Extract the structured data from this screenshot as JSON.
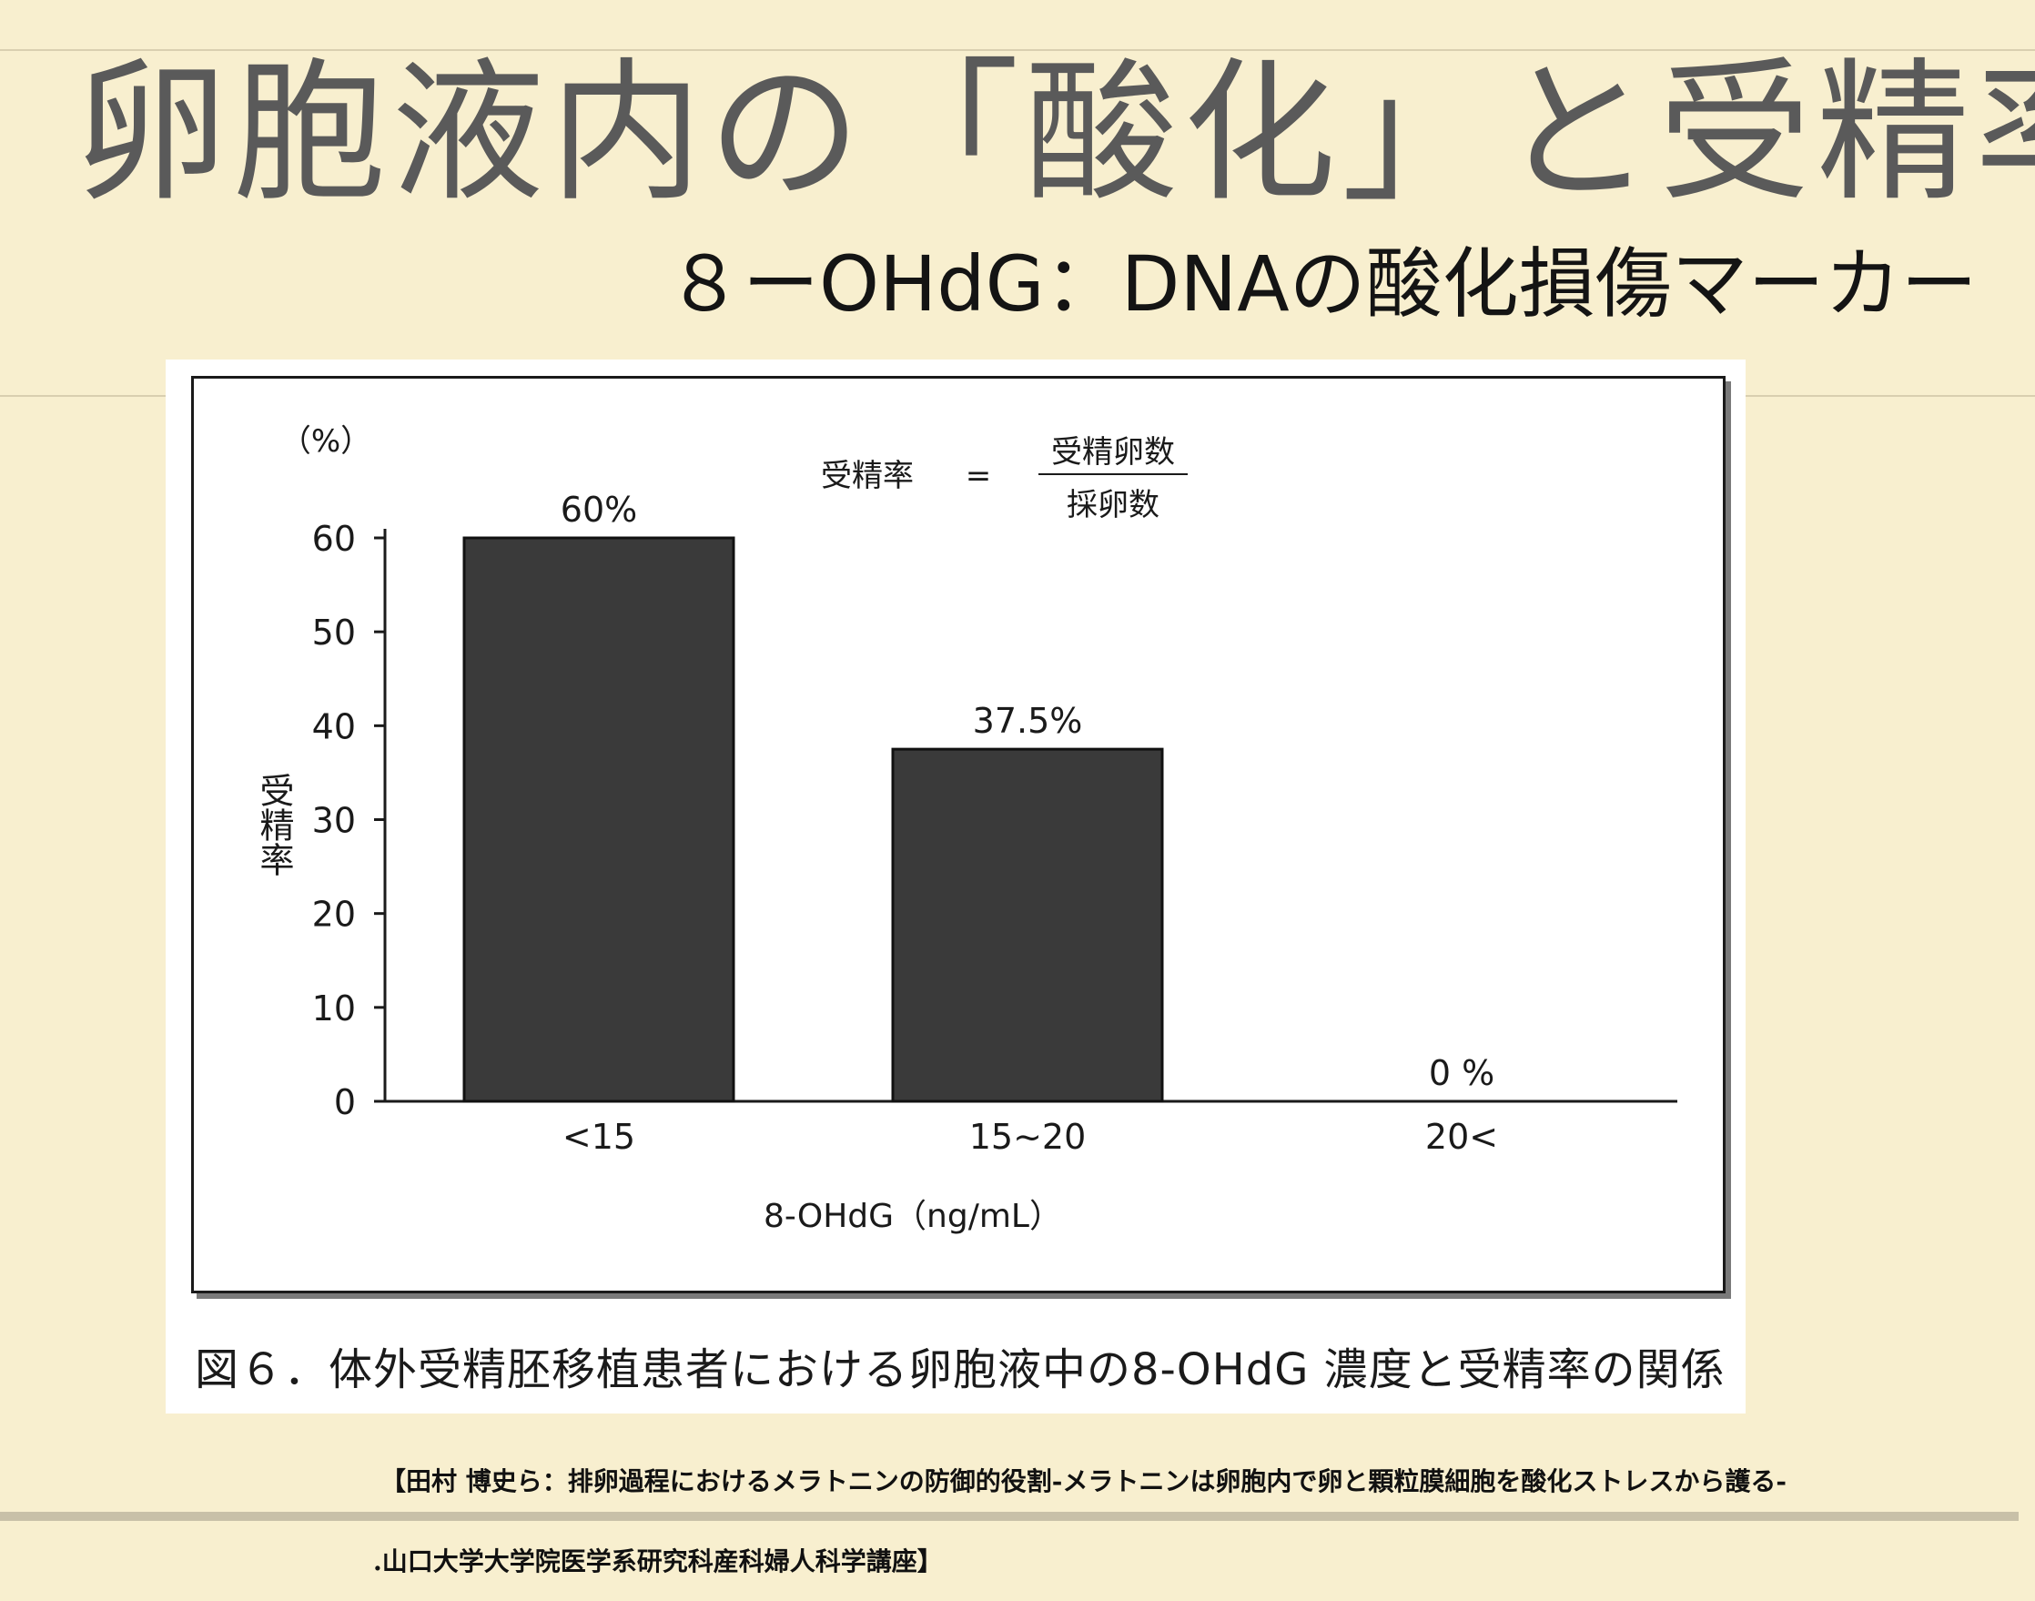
{
  "slide": {
    "title": "卵胞液内の「酸化」と受精率",
    "subtitle": "８ーOHdG：DNAの酸化損傷マーカー"
  },
  "figure": {
    "caption": "図６．体外受精胚移植患者における卵胞液中の8-OHdG 濃度と受精率の関係",
    "formula": {
      "lhs": "受精率",
      "equals": "=",
      "numerator": "受精卵数",
      "denominator": "採卵数"
    }
  },
  "citation": {
    "line1": "【田村 博史ら：排卵過程におけるメラトニンの防御的役割-メラトニンは卵胞内で卵と顆粒膜細胞を酸化ストレスから護る-",
    "line2": ".山口大学大学院医学系研究科産科婦人科学講座】"
  },
  "colors": {
    "bar": "#3a3a3a",
    "slide_background": "#f8efcf",
    "title": "#5a5a5a"
  },
  "chart_data": {
    "type": "bar",
    "categories": [
      "<15",
      "15~20",
      "20<"
    ],
    "values": [
      60,
      37.5,
      0
    ],
    "data_labels": [
      "60%",
      "37.5%",
      "0 %"
    ],
    "xlabel": "8-OHdG（ng/mL）",
    "ylabel": "受精率",
    "yunit": "（%）",
    "ylim": [
      0,
      60
    ],
    "yticks": [
      0,
      10,
      20,
      30,
      40,
      50,
      60
    ],
    "grid": false,
    "legend": "none"
  }
}
